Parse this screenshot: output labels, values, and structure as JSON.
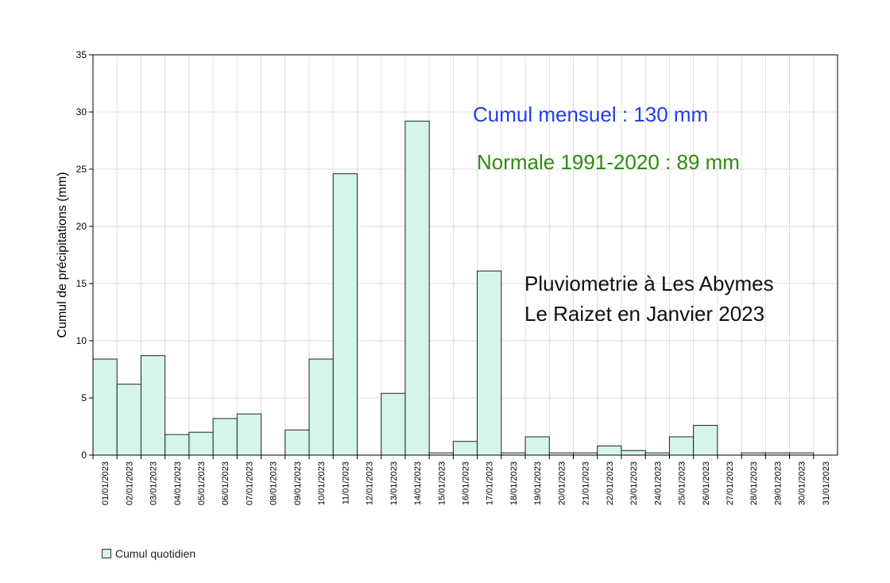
{
  "chart_data": {
    "type": "bar",
    "title": "",
    "xlabel": "",
    "ylabel": "Cumul de précipitations (mm)",
    "ylim": [
      0,
      35
    ],
    "yticks": [
      0,
      5,
      10,
      15,
      20,
      25,
      30,
      35
    ],
    "grid": true,
    "categories": [
      "01/01/2023",
      "02/01/2023",
      "03/01/2023",
      "04/01/2023",
      "05/01/2023",
      "06/01/2023",
      "07/01/2023",
      "08/01/2023",
      "09/01/2023",
      "10/01/2023",
      "11/01/2023",
      "12/01/2023",
      "13/01/2023",
      "14/01/2023",
      "15/01/2023",
      "16/01/2023",
      "17/01/2023",
      "18/01/2023",
      "19/01/2023",
      "20/01/2023",
      "21/01/2023",
      "22/01/2023",
      "23/01/2023",
      "24/01/2023",
      "25/01/2023",
      "26/01/2023",
      "27/01/2023",
      "28/01/2023",
      "29/01/2023",
      "30/01/2023",
      "31/01/2023"
    ],
    "series": [
      {
        "name": "Cumul quotidien",
        "color": "#d4f5e8",
        "values": [
          8.4,
          6.2,
          8.7,
          1.8,
          2.0,
          3.2,
          3.6,
          0,
          2.2,
          8.4,
          24.6,
          0,
          5.4,
          29.2,
          0.2,
          1.2,
          16.1,
          0.2,
          1.6,
          0.2,
          0.2,
          0.8,
          0.4,
          0.2,
          1.6,
          2.6,
          0,
          0.2,
          0.2,
          0.2,
          0
        ]
      }
    ],
    "legend": {
      "position": "bottom-left",
      "label": "Cumul quotidien"
    },
    "annotations": [
      {
        "text": "Cumul mensuel : 130 mm",
        "color": "#1f3fe8"
      },
      {
        "text": "Normale 1991-2020 : 89 mm",
        "color": "#2e8a10"
      },
      {
        "text": "Pluviometrie à Les Abymes",
        "color": "#111111"
      },
      {
        "text": "Le Raizet en Janvier 2023",
        "color": "#111111"
      }
    ]
  }
}
